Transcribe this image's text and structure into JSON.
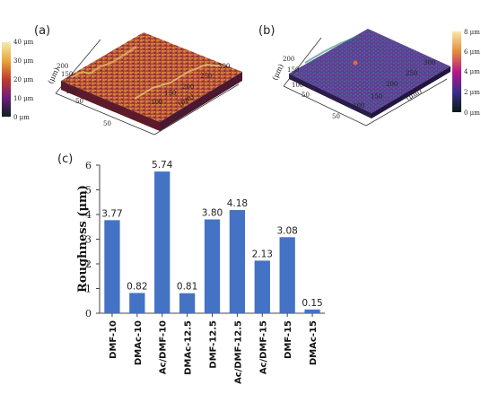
{
  "panels": {
    "a": {
      "label": "(a)",
      "scale_ticks": [
        "40 μm",
        "30 μm",
        "20 μm",
        "10 μm",
        "0  μm"
      ],
      "scale_colors": [
        "#f3ecb0",
        "#e8a73a",
        "#c0392f",
        "#6a1f7a",
        "#0d1f1c"
      ],
      "y_ticks": [
        "200",
        "150",
        "100",
        "50"
      ],
      "x_ticks": [
        "50",
        "100",
        "150",
        "200",
        "250",
        "300"
      ],
      "y_unit": "(μm)",
      "x_unit": "(μm)"
    },
    "b": {
      "label": "(b)",
      "scale_ticks": [
        "8 μm",
        "6 μm",
        "4 μm",
        "2 μm",
        "0 μm"
      ],
      "scale_colors": [
        "#f7e9a9",
        "#e58b3a",
        "#b7178b",
        "#3b2d8c",
        "#061a12"
      ],
      "y_ticks": [
        "200",
        "150",
        "100",
        "50"
      ],
      "x_ticks": [
        "50",
        "100",
        "150",
        "200",
        "250",
        "300"
      ],
      "y_unit": "(μm)",
      "x_unit": "(μm)"
    },
    "c": {
      "label": "(c)"
    }
  },
  "chart_data": {
    "type": "bar",
    "categories": [
      "DMF-10",
      "DMAc-10",
      "Ac/DMF-10",
      "DMAc-12.5",
      "DMF-12.5",
      "Ac/DMF-12.5",
      "Ac/DMF-15",
      "DMF-15",
      "DMAc-15"
    ],
    "values": [
      3.77,
      0.82,
      5.74,
      0.81,
      3.8,
      4.18,
      2.13,
      3.08,
      0.15
    ],
    "value_labels": [
      "3.77",
      "0.82",
      "5.74",
      "0.81",
      "3.80",
      "4.18",
      "2.13",
      "3.08",
      "0.15"
    ],
    "xlabel": "",
    "ylabel": "Roughness (μm)",
    "ylim": [
      0,
      6
    ],
    "yticks": [
      "0",
      "1",
      "2",
      "3",
      "4",
      "5",
      "6"
    ],
    "bar_color": "#4472c4",
    "grid": false
  }
}
